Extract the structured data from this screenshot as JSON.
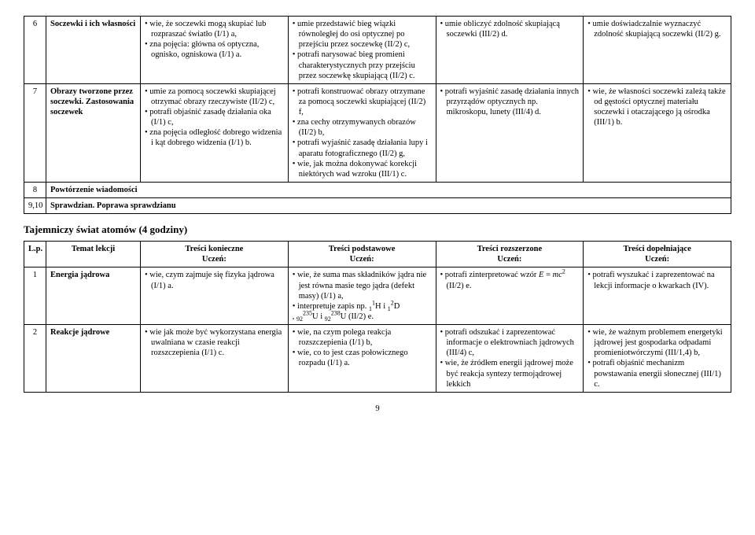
{
  "table1": {
    "rows": [
      {
        "num": "6",
        "topic": "Soczewki i ich własności",
        "c1": "• wie, że soczewki mogą skupiać lub rozpraszać światło (I/1) a,\n• zna pojęcia: główna oś optyczna, ognisko, ogniskowa (I/1) a.",
        "c2": "• umie przedstawić bieg wiązki równoległej do osi optycznej po przejściu przez soczewkę (II/2) c,\n• potrafi narysować bieg promieni charakterystycznych przy przejściu przez soczewkę skupiającą (II/2) c.",
        "c3": "• umie obliczyć zdolność skupiającą soczewki (III/2) d.",
        "c4": "• umie doświadczalnie wyznaczyć zdolność skupiającą soczewki (II/2) g."
      },
      {
        "num": "7",
        "topic": "Obrazy tworzone przez soczewki. Zastosowania soczewek",
        "c1": "• umie za pomocą soczewki skupiającej otrzymać obrazy rzeczywiste (II/2) c,\n• potrafi objaśnić zasadę działania oka (I/1) c,\n• zna pojęcia odległość dobrego widzenia i kąt dobrego widzenia (I/1) b.",
        "c2": "• potrafi konstruować obrazy otrzymane za pomocą soczewki skupiającej (II/2) f,\n• zna cechy otrzymywanych obrazów (II/2) b,\n• potrafi wyjaśnić zasadę działania lupy i aparatu fotograficznego (II/2) g,\n• wie, jak można dokonywać korekcji niektórych wad wzroku (III/1) c.",
        "c3": "• potrafi wyjaśnić zasadę działania innych przyrządów optycznych np. mikroskopu, lunety (III/4) d.",
        "c4": "• wie, że własności soczewki zależą także od gęstości optycznej materiału soczewki i otaczającego ją ośrodka (III/1) b."
      },
      {
        "num": "8",
        "topic_merged": "Powtórzenie wiadomości"
      },
      {
        "num": "9,10",
        "topic_merged": "Sprawdzian. Poprawa sprawdzianu"
      }
    ]
  },
  "section_title": "Tajemniczy świat atomów (4 godziny)",
  "table2": {
    "headers": {
      "lp": "L.p.",
      "topic": "Temat lekcji",
      "h1": "Treści konieczne",
      "h2": "Treści podstawowe",
      "h3": "Treści rozszerzone",
      "h4": "Treści dopełniające",
      "sub": "Uczeń:"
    },
    "rows": [
      {
        "num": "1",
        "topic": "Energia jądrowa",
        "c1": "• wie, czym zajmuje się fizyka jądrowa (I/1) a.",
        "c2_pre": "• wie, że suma mas składników jądra nie jest równa masie tego jądra (defekt masy) (I/1) a,\n• interpretuje zapis np. ",
        "c2_post": " (II/2) e.",
        "c3_pre": "• potrafi zinterpretować wzór ",
        "c3_formula": "E = mc²",
        "c3_post": " (II/2) e.",
        "c4": "• potrafi wyszukać i zaprezentować na lekcji informacje o kwarkach (IV)."
      },
      {
        "num": "2",
        "topic": "Reakcje jądrowe",
        "c1": "• wie jak może być wykorzystana energia uwalniana w czasie reakcji rozszczepienia (I/1) c.",
        "c2": "• wie, na czym polega reakcja rozszczepienia (I/1) b,\n• wie, co to jest czas połowicznego rozpadu (I/1) a.",
        "c3": "• potrafi odszukać i zaprezentować informacje o elektrowniach jądrowych (III/4) c,\n• wie, że źródłem energii jądrowej może być reakcja syntezy termojądrowej lekkich",
        "c4": "• wie, że ważnym problemem energetyki jądrowej jest gospodarka odpadami promieniotwórczymi (III/1,4) b,\n• potrafi objaśnić mechanizm powstawania energii słonecznej (III/1) c."
      }
    ]
  },
  "page_number": "9"
}
